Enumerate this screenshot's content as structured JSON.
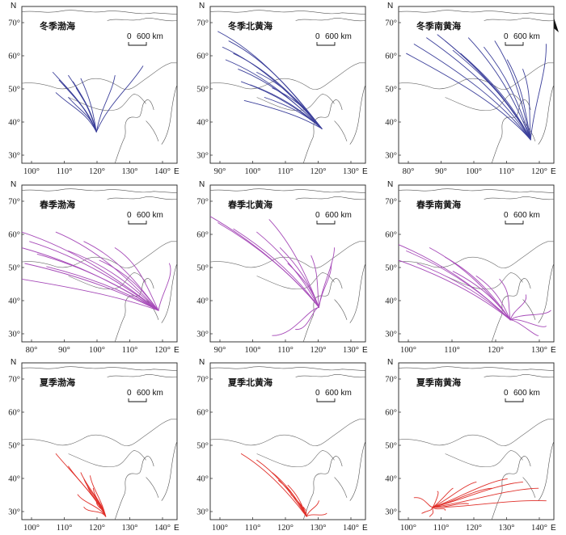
{
  "labels": {
    "north": "N",
    "east": "E",
    "scale_zero": "0",
    "scale_km": "600 km"
  },
  "colors": {
    "winter": "#3b3f9a",
    "spring": "#a64ab8",
    "summer": "#e0302a"
  },
  "panels": [
    {
      "id": "winter-bohai",
      "title": "冬季渤海",
      "season": "winter",
      "x_ticks": [
        "100°",
        "110°",
        "120°",
        "130°",
        "140°"
      ],
      "y_ticks": [
        "70°",
        "60°",
        "50°",
        "40°",
        "30°"
      ]
    },
    {
      "id": "winter-north-yellow",
      "title": "冬季北黄海",
      "season": "winter",
      "x_ticks": [
        "90°",
        "100°",
        "110°",
        "120°",
        "130°"
      ],
      "y_ticks": [
        "70°",
        "60°",
        "50°",
        "40°",
        "30°"
      ]
    },
    {
      "id": "winter-south-yellow",
      "title": "冬季南黄海",
      "season": "winter",
      "x_ticks": [
        "80°",
        "90°",
        "100°",
        "110°",
        "120°"
      ],
      "y_ticks": [
        "70°",
        "60°",
        "50°",
        "40°",
        "30°"
      ]
    },
    {
      "id": "spring-bohai",
      "title": "春季渤海",
      "season": "spring",
      "x_ticks": [
        "80°",
        "90°",
        "100°",
        "110°",
        "120°"
      ],
      "y_ticks": [
        "70°",
        "60°",
        "50°",
        "40°",
        "30°"
      ]
    },
    {
      "id": "spring-north-yellow",
      "title": "春季北黄海",
      "season": "spring",
      "x_ticks": [
        "90°",
        "100°",
        "110°",
        "120°",
        "130°"
      ],
      "y_ticks": [
        "70°",
        "60°",
        "50°",
        "40°",
        "30°"
      ]
    },
    {
      "id": "spring-south-yellow",
      "title": "春季南黄海",
      "season": "spring",
      "x_ticks": [
        "100°",
        "110°",
        "120°",
        "130°"
      ],
      "y_ticks": [
        "70°",
        "60°",
        "50°",
        "40°",
        "30°"
      ]
    },
    {
      "id": "summer-bohai",
      "title": "夏季渤海",
      "season": "summer",
      "x_ticks": [
        "100°",
        "110°",
        "120°",
        "130°",
        "140°"
      ],
      "y_ticks": [
        "70°",
        "60°",
        "50°",
        "40°",
        "30°"
      ]
    },
    {
      "id": "summer-north-yellow",
      "title": "夏季北黄海",
      "season": "summer",
      "x_ticks": [
        "100°",
        "110°",
        "120°",
        "130°",
        "140°"
      ],
      "y_ticks": [
        "70°",
        "60°",
        "50°",
        "40°",
        "30°"
      ]
    },
    {
      "id": "summer-south-yellow",
      "title": "夏季南黄海",
      "season": "summer",
      "x_ticks": [
        "100°",
        "110°",
        "120°",
        "130°",
        "140°"
      ],
      "y_ticks": [
        "70°",
        "60°",
        "50°",
        "40°",
        "30°"
      ]
    }
  ]
}
